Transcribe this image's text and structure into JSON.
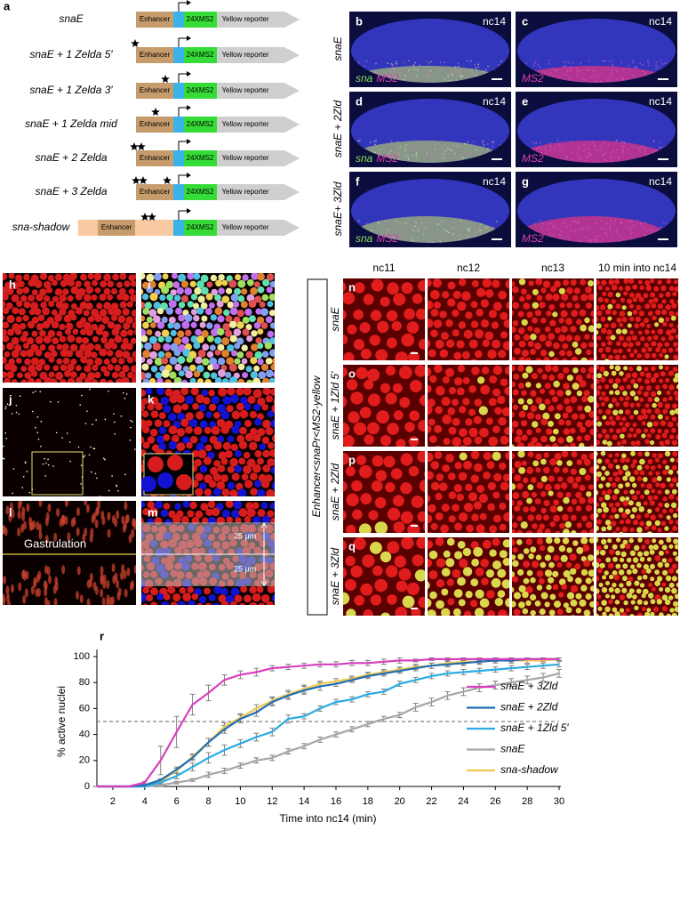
{
  "panel_a": {
    "label": "a",
    "parts": [
      "Enhancer",
      "24XMS2",
      "Yellow reporter"
    ],
    "constructs": [
      "snaE",
      "snaE + 1 Zelda 5′",
      "snaE + 1 Zelda 3′",
      "snaE + 1 Zelda mid",
      "snaE + 2 Zelda",
      "snaE + 3 Zelda",
      "sna-shadow"
    ]
  },
  "panel_b_g": {
    "panels": [
      "b",
      "c",
      "d",
      "e",
      "f",
      "g"
    ],
    "stage": "nc14",
    "rows": [
      "snaE",
      "snaE + 2Zld",
      "snaE+ 3Zld"
    ],
    "channel_sna": "sna",
    "channel_ms2": "MS2"
  },
  "panel_h_m": {
    "panels": [
      "h",
      "i",
      "j",
      "k",
      "l",
      "m"
    ],
    "gastrulation": "Gastrulation",
    "distance": "25 µm"
  },
  "panel_n_q": {
    "construct": "Enhancer<snaPr<MS2-yellow",
    "columns": [
      "nc11",
      "nc12",
      "nc13",
      "10 min into nc14"
    ],
    "rows": [
      {
        "label": "n",
        "name": "snaE"
      },
      {
        "label": "o",
        "name": "snaE + 1Zld 5′"
      },
      {
        "label": "p",
        "name": "snaE + 2Zld"
      },
      {
        "label": "q",
        "name": "snaE + 3Zld"
      }
    ]
  },
  "panel_r": {
    "label": "r"
  },
  "chart_data": {
    "type": "line",
    "x_label": "Time into nc14 (min)",
    "y_label": "% active nuclei",
    "x": [
      1,
      2,
      3,
      4,
      5,
      6,
      7,
      8,
      9,
      10,
      11,
      12,
      13,
      14,
      15,
      16,
      17,
      18,
      19,
      20,
      21,
      22,
      23,
      24,
      25,
      26,
      27,
      28,
      29,
      30
    ],
    "xlim": [
      1,
      30
    ],
    "xticks": [
      2,
      4,
      6,
      8,
      10,
      12,
      14,
      16,
      18,
      20,
      22,
      24,
      26,
      28,
      30
    ],
    "ylim": [
      0,
      100
    ],
    "yticks": [
      0,
      20,
      40,
      60,
      80,
      100
    ],
    "hline": 50,
    "legend": "lower right",
    "series": [
      {
        "name": "snaE + 3Zld",
        "color": "#d83fc0",
        "values": [
          0,
          0,
          0,
          3,
          20,
          42,
          63,
          72,
          82,
          86,
          88,
          91,
          92,
          93,
          94,
          94,
          95,
          95,
          96,
          97,
          97,
          98,
          98,
          98,
          98,
          98,
          98,
          98,
          98,
          98
        ],
        "errors": [
          0,
          0,
          0,
          1,
          11,
          12,
          8,
          6,
          4,
          3,
          3,
          2,
          2,
          2,
          2,
          2,
          2,
          2,
          2,
          2,
          1,
          1,
          1,
          1,
          1,
          1,
          1,
          1,
          1,
          1
        ]
      },
      {
        "name": "snaE + 2Zld",
        "color": "#1f6db3",
        "values": [
          0,
          0,
          0,
          1,
          5,
          13,
          22,
          34,
          44,
          52,
          57,
          65,
          70,
          74,
          77,
          79,
          82,
          85,
          87,
          89,
          91,
          93,
          94,
          95,
          96,
          97,
          97,
          98,
          98,
          98
        ],
        "errors": [
          0,
          0,
          0,
          1,
          1,
          2,
          2,
          3,
          3,
          3,
          3,
          3,
          3,
          3,
          3,
          2,
          2,
          2,
          2,
          2,
          2,
          2,
          2,
          2,
          1,
          1,
          1,
          1,
          1,
          1
        ]
      },
      {
        "name": "snaE + 1Zld 5′",
        "color": "#2aabe2",
        "values": [
          0,
          0,
          0,
          0,
          3,
          8,
          15,
          22,
          28,
          33,
          38,
          42,
          52,
          54,
          60,
          65,
          67,
          71,
          73,
          79,
          82,
          85,
          87,
          88,
          89,
          90,
          91,
          92,
          93,
          94
        ],
        "errors": [
          0,
          0,
          0,
          0,
          1,
          2,
          3,
          4,
          4,
          3,
          3,
          3,
          3,
          2,
          2,
          2,
          2,
          2,
          2,
          2,
          2,
          2,
          2,
          2,
          2,
          2,
          2,
          2,
          2,
          2
        ]
      },
      {
        "name": "snaE",
        "color": "#a6a6a6",
        "values": [
          0,
          0,
          0,
          0,
          1,
          3,
          5,
          9,
          12,
          16,
          20,
          22,
          27,
          31,
          36,
          40,
          44,
          48,
          52,
          55,
          61,
          65,
          70,
          73,
          76,
          78,
          80,
          82,
          84,
          87
        ],
        "errors": [
          0,
          0,
          0,
          0,
          1,
          1,
          1,
          2,
          2,
          2,
          2,
          2,
          2,
          2,
          2,
          2,
          2,
          2,
          2,
          2,
          3,
          3,
          3,
          3,
          3,
          3,
          3,
          3,
          3,
          3
        ]
      },
      {
        "name": "sna-shadow",
        "color": "#f2c94c",
        "values": [
          0,
          0,
          0,
          1,
          4,
          12,
          23,
          34,
          46,
          53,
          60,
          66,
          71,
          75,
          79,
          81,
          83,
          86,
          88,
          90,
          92,
          93,
          95,
          96,
          96,
          97,
          97,
          97,
          97,
          98
        ],
        "errors": [
          0,
          0,
          0,
          1,
          1,
          2,
          2,
          3,
          3,
          3,
          3,
          3,
          3,
          3,
          2,
          2,
          2,
          2,
          2,
          2,
          2,
          2,
          2,
          2,
          2,
          2,
          2,
          2,
          1,
          1
        ]
      }
    ]
  }
}
